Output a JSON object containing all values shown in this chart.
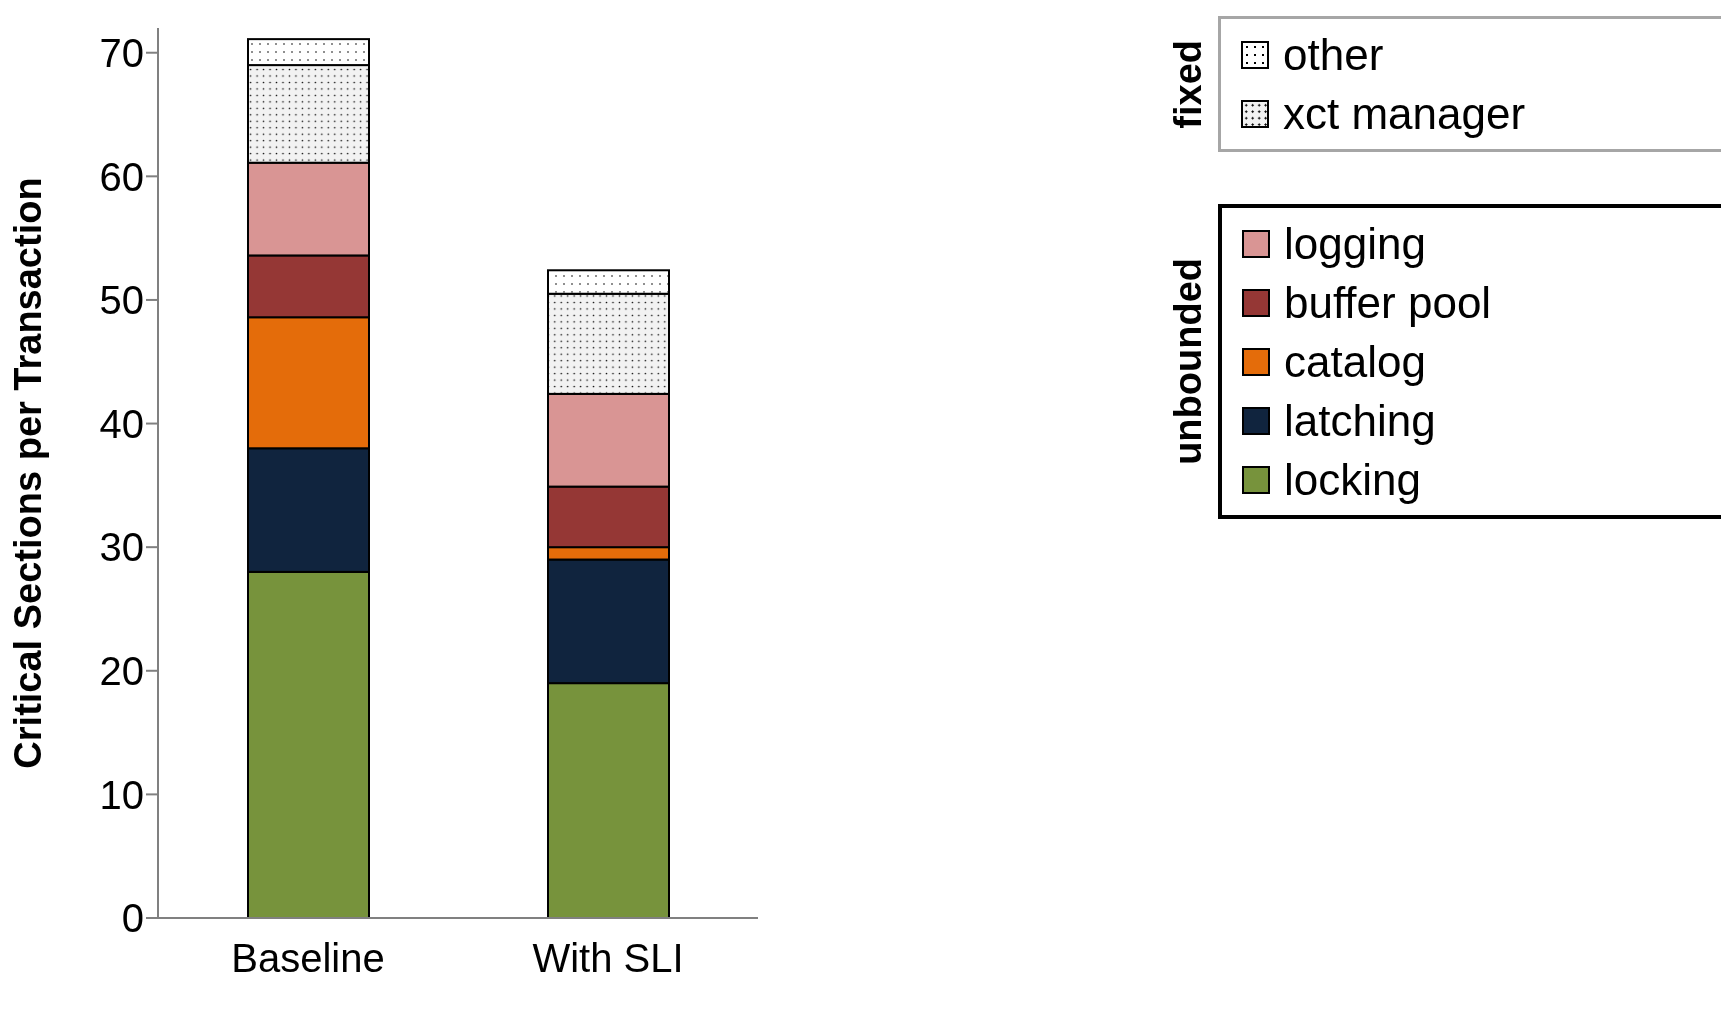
{
  "chart_data": {
    "type": "bar",
    "stacked": true,
    "ylabel": "Critical Sections per Transaction",
    "categories": [
      "Baseline",
      "With SLI"
    ],
    "series": [
      {
        "name": "locking",
        "color": "#77933c",
        "values": [
          28,
          19
        ]
      },
      {
        "name": "latching",
        "color": "#10243e",
        "values": [
          10,
          10
        ]
      },
      {
        "name": "catalog",
        "color": "#e46c0a",
        "values": [
          10.6,
          1
        ]
      },
      {
        "name": "buffer pool",
        "color": "#953735",
        "values": [
          5,
          4.9
        ]
      },
      {
        "name": "logging",
        "color": "#d99594",
        "values": [
          7.5,
          7.5
        ]
      },
      {
        "name": "xct manager",
        "color": "#f2f2f2",
        "values": [
          7.9,
          8.1
        ]
      },
      {
        "name": "other",
        "color": "#ffffff",
        "values": [
          2.1,
          1.9
        ]
      }
    ],
    "ylim": [
      0,
      72
    ],
    "yticks": [
      0,
      10,
      20,
      30,
      40,
      50,
      60,
      70
    ],
    "grid": false,
    "legend": "top right",
    "annotations": [
      "fixed",
      "unbounded"
    ]
  }
}
